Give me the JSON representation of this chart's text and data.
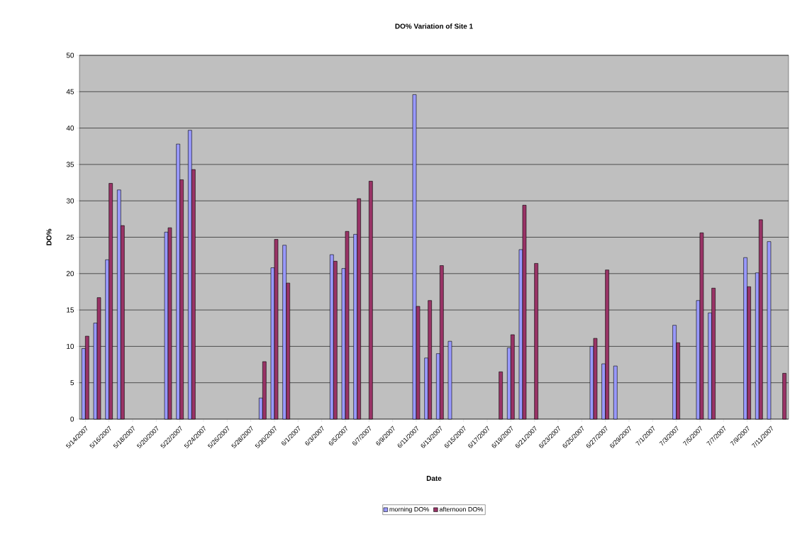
{
  "chart_data": {
    "type": "bar",
    "title": "DO% Variation of Site 1",
    "xlabel": "Date",
    "ylabel": "DO%",
    "categories": [
      "5/14/2007",
      null,
      "5/16/2007",
      null,
      "5/18/2007",
      null,
      "5/20/2007",
      null,
      "5/22/2007",
      null,
      "5/24/2007",
      null,
      "5/26/2007",
      null,
      "5/28/2007",
      null,
      "5/30/2007",
      null,
      "6/1/2007",
      null,
      "6/3/2007",
      null,
      "6/5/2007",
      null,
      "6/7/2007",
      null,
      "6/9/2007",
      null,
      "6/11/2007",
      null,
      "6/13/2007",
      null,
      "6/15/2007",
      null,
      "6/17/2007",
      null,
      "6/19/2007",
      null,
      "6/21/2007",
      null,
      "6/23/2007",
      null,
      "6/25/2007",
      null,
      "6/27/2007",
      null,
      "6/29/2007",
      null,
      "7/1/2007",
      null,
      "7/3/2007",
      null,
      "7/5/2007",
      null,
      "7/7/2007",
      null,
      "7/9/2007",
      null,
      "7/11/2007",
      null
    ],
    "series": [
      {
        "name": "morning DO%",
        "color": "#9999ff",
        "values": [
          9.7,
          13.2,
          21.9,
          31.5,
          null,
          null,
          null,
          25.7,
          37.8,
          39.7,
          null,
          null,
          null,
          null,
          null,
          2.9,
          20.8,
          23.9,
          null,
          null,
          null,
          22.6,
          20.7,
          25.4,
          null,
          null,
          null,
          null,
          44.6,
          8.4,
          9.0,
          10.7,
          null,
          null,
          null,
          null,
          9.8,
          23.3,
          null,
          null,
          null,
          null,
          null,
          10.0,
          7.6,
          7.3,
          null,
          null,
          null,
          null,
          12.9,
          null,
          16.3,
          14.6,
          null,
          null,
          22.2,
          20.1,
          24.4,
          null
        ]
      },
      {
        "name": "afternoon DO%",
        "color": "#993366",
        "values": [
          11.4,
          16.7,
          32.4,
          26.6,
          null,
          null,
          null,
          26.3,
          32.9,
          34.3,
          null,
          null,
          null,
          null,
          null,
          7.9,
          24.7,
          18.7,
          null,
          null,
          null,
          21.7,
          25.8,
          30.3,
          32.7,
          null,
          null,
          null,
          15.5,
          16.3,
          21.1,
          null,
          null,
          null,
          null,
          6.5,
          11.6,
          29.4,
          21.4,
          null,
          null,
          null,
          null,
          11.1,
          20.5,
          null,
          null,
          null,
          null,
          null,
          10.5,
          null,
          25.6,
          18.0,
          null,
          null,
          18.2,
          27.4,
          null,
          6.3
        ]
      }
    ],
    "ylim": [
      0,
      50
    ],
    "yticks": [
      0,
      5,
      10,
      15,
      20,
      25,
      30,
      35,
      40,
      45,
      50
    ],
    "grid": "y",
    "legend": "bottom"
  }
}
